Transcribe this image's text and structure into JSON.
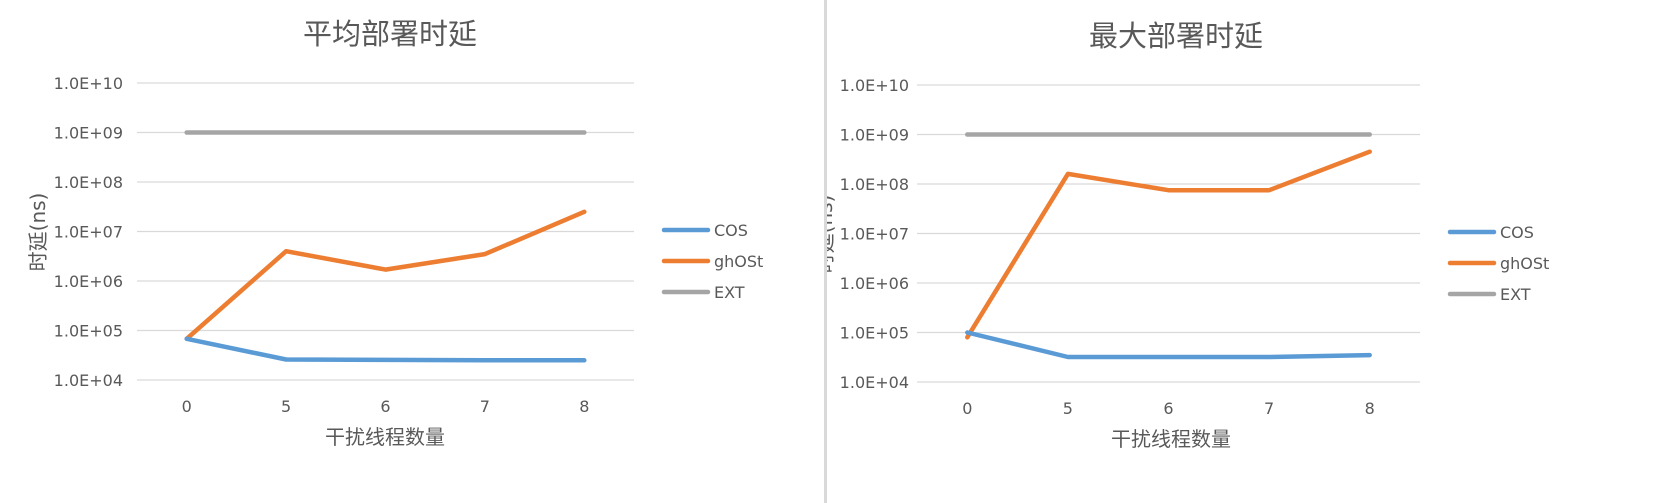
{
  "chart_data": [
    {
      "type": "line",
      "title": "平均部署时延",
      "xlabel": "干扰线程数量",
      "ylabel": "时延(ns)",
      "categories": [
        "0",
        "5",
        "6",
        "7",
        "8"
      ],
      "y_scale": "log",
      "ylim": [
        10000,
        10000000000
      ],
      "y_ticks": [
        "1.0E+04",
        "1.0E+05",
        "1.0E+06",
        "1.0E+07",
        "1.0E+08",
        "1.0E+09",
        "1.0E+10"
      ],
      "grid": true,
      "legend": "right",
      "series": [
        {
          "name": "COS",
          "color": "#5b9bd5",
          "values": [
            68000,
            26000,
            25500,
            25000,
            25000
          ]
        },
        {
          "name": "ghOSt",
          "color": "#ed7d31",
          "values": [
            68000,
            4000000,
            1700000,
            3500000,
            25000000
          ]
        },
        {
          "name": "EXT",
          "color": "#a5a5a5",
          "values": [
            1000000000,
            1000000000,
            1000000000,
            1000000000,
            1000000000
          ]
        }
      ]
    },
    {
      "type": "line",
      "title": "最大部署时延",
      "xlabel": "干扰线程数量",
      "ylabel": "时延(ns)",
      "categories": [
        "0",
        "5",
        "6",
        "7",
        "8"
      ],
      "y_scale": "log",
      "ylim": [
        10000,
        10000000000
      ],
      "y_ticks": [
        "1.0E+04",
        "1.0E+05",
        "1.0E+06",
        "1.0E+07",
        "1.0E+08",
        "1.0E+09",
        "1.0E+10"
      ],
      "grid": true,
      "legend": "right",
      "series": [
        {
          "name": "COS",
          "color": "#5b9bd5",
          "values": [
            100000,
            32000,
            32000,
            32000,
            35000
          ]
        },
        {
          "name": "ghOSt",
          "color": "#ed7d31",
          "values": [
            80000,
            160000000,
            75000000,
            75000000,
            450000000
          ]
        },
        {
          "name": "EXT",
          "color": "#a5a5a5",
          "values": [
            1000000000,
            1000000000,
            1000000000,
            1000000000,
            1000000000
          ]
        }
      ]
    }
  ]
}
